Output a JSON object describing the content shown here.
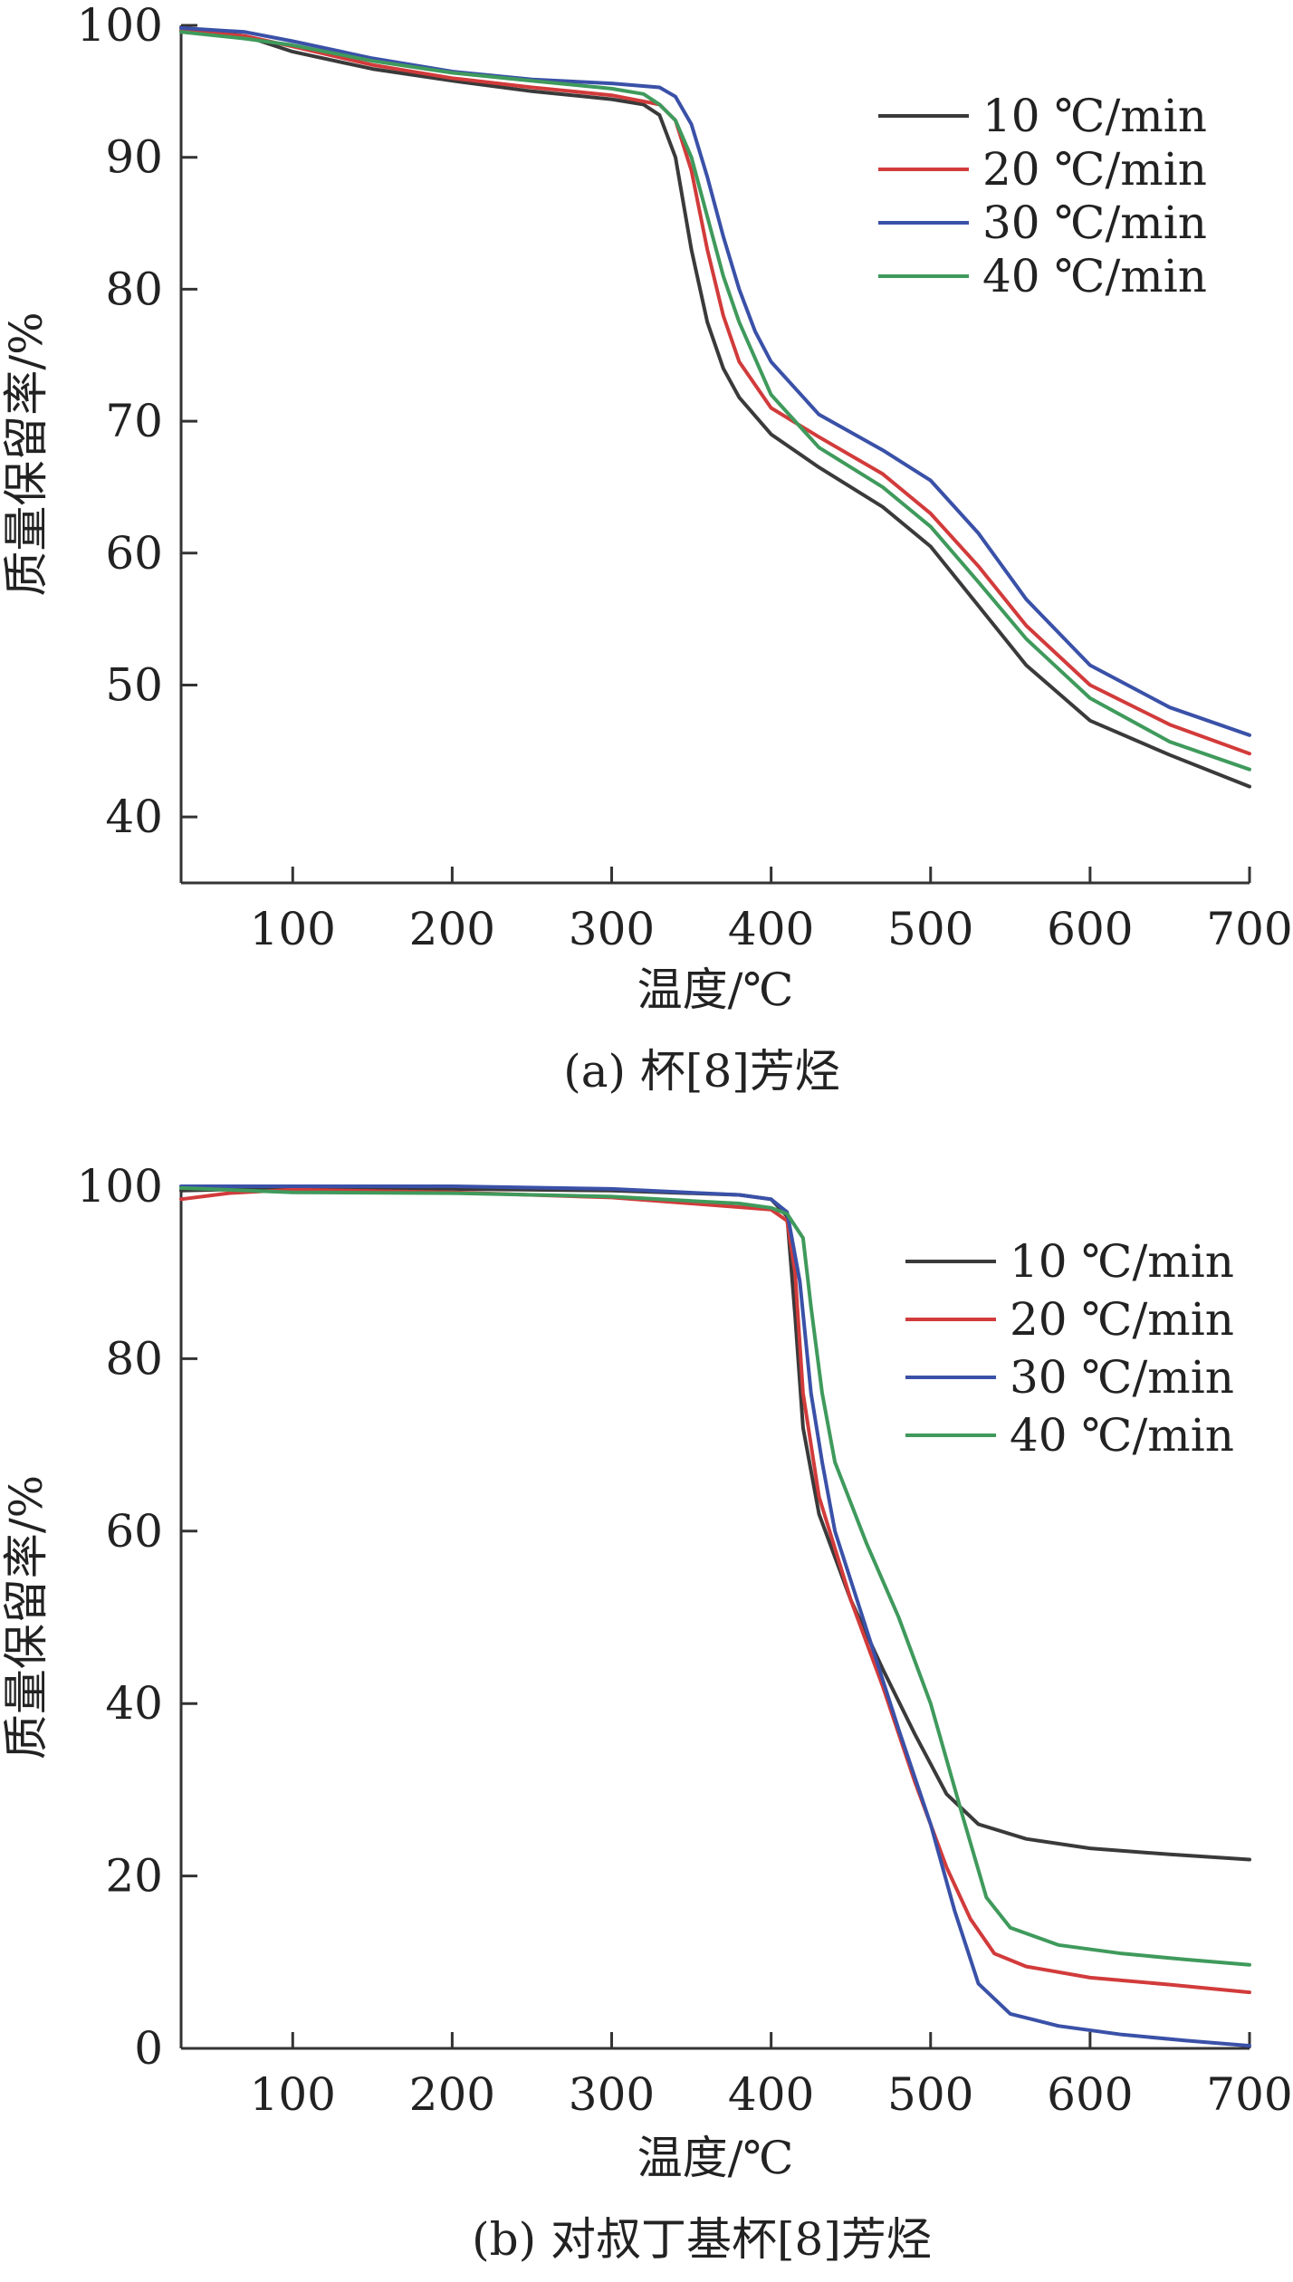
{
  "chart_data": [
    {
      "type": "line",
      "caption": "(a) 杯[8]芳烃",
      "xlabel": "温度/℃",
      "ylabel": "质量保留率/%",
      "xlim": [
        30,
        700
      ],
      "ylim": [
        35,
        100
      ],
      "xticks": [
        100,
        200,
        300,
        400,
        500,
        600,
        700
      ],
      "yticks": [
        40,
        50,
        60,
        70,
        80,
        90,
        100
      ],
      "legend_position": "top-right",
      "series": [
        {
          "name": "10 ℃/min",
          "color": "#3a3a3a",
          "x": [
            30,
            70,
            100,
            150,
            200,
            250,
            300,
            320,
            330,
            340,
            350,
            360,
            370,
            380,
            400,
            430,
            470,
            500,
            530,
            560,
            600,
            650,
            700
          ],
          "y": [
            99.8,
            99.2,
            98.0,
            96.7,
            95.8,
            95.0,
            94.4,
            94.0,
            93.2,
            90.0,
            83.0,
            77.5,
            74.0,
            71.8,
            69.0,
            66.5,
            63.5,
            60.5,
            56.0,
            51.5,
            47.3,
            44.7,
            42.3
          ]
        },
        {
          "name": "20 ℃/min",
          "color": "#d23b3b",
          "x": [
            30,
            70,
            100,
            150,
            200,
            250,
            300,
            330,
            340,
            350,
            360,
            370,
            380,
            400,
            430,
            470,
            500,
            530,
            560,
            600,
            650,
            700
          ],
          "y": [
            99.6,
            99.2,
            98.4,
            97.0,
            96.0,
            95.3,
            94.7,
            94.0,
            92.8,
            89.0,
            83.0,
            78.0,
            74.5,
            71.0,
            68.8,
            66.0,
            63.0,
            59.0,
            54.5,
            50.0,
            47.0,
            44.8
          ]
        },
        {
          "name": "30 ℃/min",
          "color": "#3a51a8",
          "x": [
            30,
            70,
            100,
            150,
            200,
            250,
            300,
            330,
            340,
            350,
            360,
            370,
            380,
            390,
            400,
            430,
            470,
            500,
            530,
            560,
            600,
            650,
            700
          ],
          "y": [
            99.8,
            99.5,
            98.8,
            97.5,
            96.5,
            95.9,
            95.6,
            95.3,
            94.6,
            92.5,
            88.5,
            84.0,
            80.0,
            76.8,
            74.5,
            70.5,
            67.8,
            65.5,
            61.5,
            56.5,
            51.5,
            48.3,
            46.2
          ]
        },
        {
          "name": "40 ℃/min",
          "color": "#3f9a5c",
          "x": [
            30,
            70,
            100,
            150,
            200,
            250,
            300,
            320,
            330,
            340,
            350,
            360,
            370,
            380,
            400,
            430,
            470,
            500,
            530,
            560,
            600,
            650,
            700
          ],
          "y": [
            99.5,
            99.0,
            98.5,
            97.3,
            96.4,
            95.8,
            95.2,
            94.8,
            94.0,
            92.8,
            90.0,
            85.5,
            81.0,
            77.5,
            72.0,
            68.0,
            65.0,
            62.0,
            57.8,
            53.5,
            49.0,
            45.7,
            43.6
          ]
        }
      ]
    },
    {
      "type": "line",
      "caption": "(b) 对叔丁基杯[8]芳烃",
      "xlabel": "温度/℃",
      "ylabel": "质量保留率/%",
      "xlim": [
        30,
        700
      ],
      "ylim": [
        0,
        100
      ],
      "xticks": [
        100,
        200,
        300,
        400,
        500,
        600,
        700
      ],
      "yticks": [
        0,
        20,
        40,
        60,
        80,
        100
      ],
      "legend_position": "top-right",
      "series": [
        {
          "name": "10 ℃/min",
          "color": "#3a3a3a",
          "x": [
            30,
            100,
            200,
            300,
            380,
            400,
            410,
            415,
            420,
            425,
            430,
            450,
            470,
            490,
            510,
            530,
            560,
            600,
            650,
            700
          ],
          "y": [
            99.5,
            99.8,
            99.7,
            99.5,
            99.0,
            98.5,
            96.5,
            85.0,
            72.0,
            67.0,
            62.0,
            52.0,
            44.0,
            36.5,
            29.5,
            26.0,
            24.3,
            23.2,
            22.5,
            21.9
          ]
        },
        {
          "name": "20 ℃/min",
          "color": "#d23b3b",
          "x": [
            30,
            60,
            100,
            200,
            300,
            350,
            400,
            410,
            415,
            420,
            430,
            450,
            470,
            490,
            510,
            525,
            540,
            560,
            600,
            650,
            700
          ],
          "y": [
            98.5,
            99.2,
            99.6,
            99.3,
            98.7,
            98.0,
            97.3,
            96.0,
            90.0,
            76.0,
            64.0,
            52.0,
            42.0,
            31.0,
            21.0,
            15.0,
            11.0,
            9.5,
            8.2,
            7.4,
            6.5
          ]
        },
        {
          "name": "30 ℃/min",
          "color": "#3a51a8",
          "x": [
            30,
            100,
            200,
            300,
            380,
            400,
            410,
            418,
            425,
            432,
            440,
            460,
            480,
            500,
            515,
            530,
            550,
            580,
            620,
            660,
            700
          ],
          "y": [
            100,
            100,
            100,
            99.7,
            99.0,
            98.5,
            97.0,
            89.0,
            76.0,
            68.0,
            60.0,
            48.5,
            37.0,
            26.0,
            16.0,
            7.5,
            4.0,
            2.6,
            1.6,
            0.9,
            0.3
          ]
        },
        {
          "name": "40 ℃/min",
          "color": "#3f9a5c",
          "x": [
            30,
            100,
            200,
            300,
            380,
            400,
            410,
            420,
            425,
            432,
            440,
            460,
            480,
            500,
            520,
            535,
            550,
            580,
            620,
            660,
            700
          ],
          "y": [
            99.8,
            99.3,
            99.2,
            98.8,
            98.0,
            97.5,
            96.8,
            94.0,
            86.0,
            76.0,
            68.0,
            58.5,
            50.0,
            40.0,
            27.0,
            17.5,
            14.0,
            12.0,
            11.0,
            10.3,
            9.7
          ]
        }
      ]
    }
  ]
}
